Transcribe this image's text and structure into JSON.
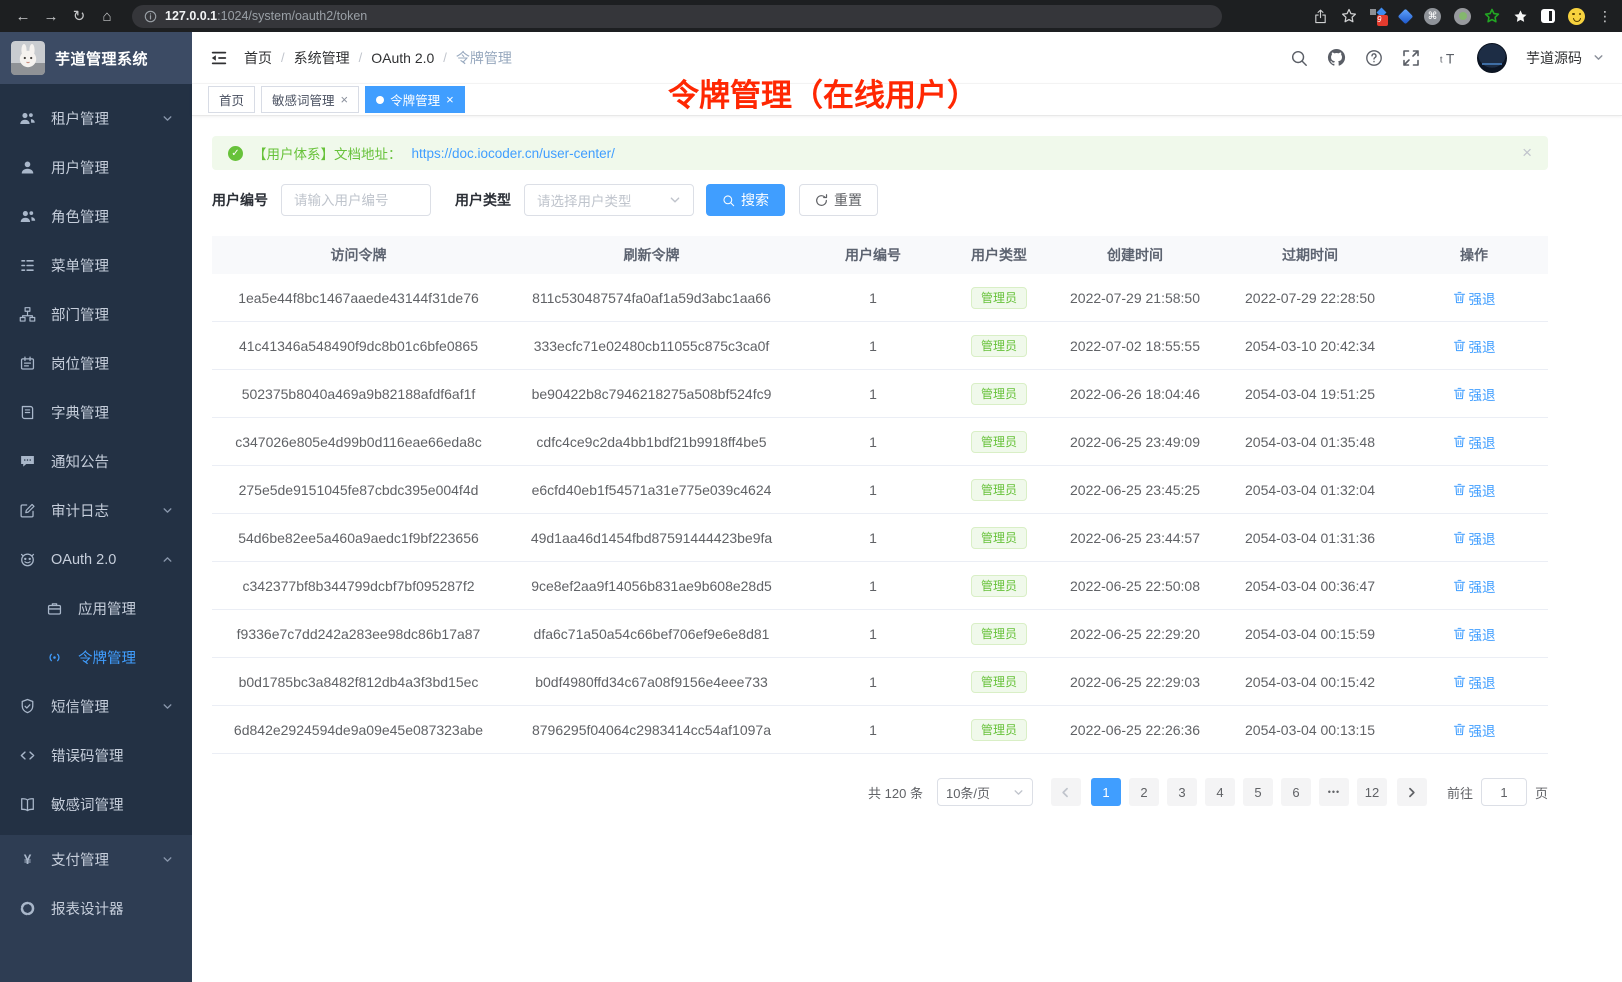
{
  "browser": {
    "url_host": "127.0.0.1",
    "url_path": ":1024/system/oauth2/token",
    "extension_badge": "9",
    "nav_icons": [
      "back-icon",
      "forward-icon",
      "reload-icon",
      "home-icon",
      "share-icon",
      "bookmark-star-icon",
      "extensions",
      "overflow-menu-icon"
    ]
  },
  "sidebar": {
    "app_title": "芋道管理系统",
    "items": [
      {
        "key": "tenant",
        "label": "租户管理",
        "icon": "tenant-icon",
        "chevron": "down"
      },
      {
        "key": "user",
        "label": "用户管理",
        "icon": "user-icon"
      },
      {
        "key": "role",
        "label": "角色管理",
        "icon": "role-icon"
      },
      {
        "key": "menu",
        "label": "菜单管理",
        "icon": "menu-icon"
      },
      {
        "key": "dept",
        "label": "部门管理",
        "icon": "dept-icon"
      },
      {
        "key": "post",
        "label": "岗位管理",
        "icon": "post-icon"
      },
      {
        "key": "dict",
        "label": "字典管理",
        "icon": "dict-icon"
      },
      {
        "key": "notice",
        "label": "通知公告",
        "icon": "notice-icon"
      },
      {
        "key": "audit-log",
        "label": "审计日志",
        "icon": "audit-icon",
        "chevron": "down"
      },
      {
        "key": "oauth2",
        "label": "OAuth 2.0",
        "icon": "oauth-icon",
        "chevron": "up"
      },
      {
        "key": "oauth2-app",
        "label": "应用管理",
        "icon": "app-icon",
        "sub": true
      },
      {
        "key": "oauth2-token",
        "label": "令牌管理",
        "icon": "token-icon",
        "sub": true,
        "active": true
      },
      {
        "key": "sms",
        "label": "短信管理",
        "icon": "sms-icon",
        "chevron": "down"
      },
      {
        "key": "error-code",
        "label": "错误码管理",
        "icon": "errcode-icon"
      },
      {
        "key": "sensitive-word",
        "label": "敏感词管理",
        "icon": "sensitive-icon"
      },
      {
        "key": "pay",
        "label": "支付管理",
        "icon": "pay-icon",
        "chevron": "down",
        "group": "light"
      },
      {
        "key": "report-designer",
        "label": "报表设计器",
        "icon": "report-icon",
        "group": "light"
      }
    ]
  },
  "header": {
    "breadcrumb": [
      "首页",
      "系统管理",
      "OAuth 2.0",
      "令牌管理"
    ],
    "tools": [
      "search-icon",
      "github-icon",
      "help-icon",
      "fullscreen-icon",
      "font-size-icon"
    ],
    "username": "芋道源码",
    "annotation": "令牌管理（在线用户）"
  },
  "tabs": [
    {
      "key": "home",
      "label": "首页",
      "closable": false,
      "active": false
    },
    {
      "key": "sensitive-word",
      "label": "敏感词管理",
      "closable": true,
      "active": false
    },
    {
      "key": "oauth2-token",
      "label": "令牌管理",
      "closable": true,
      "active": true
    }
  ],
  "alert": {
    "text": "【用户体系】文档地址：",
    "link": "https://doc.iocoder.cn/user-center/"
  },
  "filters": {
    "user_id_label": "用户编号",
    "user_id_placeholder": "请输入用户编号",
    "user_type_label": "用户类型",
    "user_type_placeholder": "请选择用户类型",
    "search_label": "搜索",
    "reset_label": "重置"
  },
  "table": {
    "columns": [
      "访问令牌",
      "刷新令牌",
      "用户编号",
      "用户类型",
      "创建时间",
      "过期时间",
      "操作"
    ],
    "rows": [
      {
        "access_token": "1ea5e44f8bc1467aaede43144f31de76",
        "refresh_token": "811c530487574fa0af1a59d3abc1aa66",
        "user_id": "1",
        "user_type": "管理员",
        "created_time": "2022-07-29 21:58:50",
        "expire_time": "2022-07-29 22:28:50",
        "action": "强退"
      },
      {
        "access_token": "41c41346a548490f9dc8b01c6bfe0865",
        "refresh_token": "333ecfc71e02480cb11055c875c3ca0f",
        "user_id": "1",
        "user_type": "管理员",
        "created_time": "2022-07-02 18:55:55",
        "expire_time": "2054-03-10 20:42:34",
        "action": "强退"
      },
      {
        "access_token": "502375b8040a469a9b82188afdf6af1f",
        "refresh_token": "be90422b8c7946218275a508bf524fc9",
        "user_id": "1",
        "user_type": "管理员",
        "created_time": "2022-06-26 18:04:46",
        "expire_time": "2054-03-04 19:51:25",
        "action": "强退"
      },
      {
        "access_token": "c347026e805e4d99b0d116eae66eda8c",
        "refresh_token": "cdfc4ce9c2da4bb1bdf21b9918ff4be5",
        "user_id": "1",
        "user_type": "管理员",
        "created_time": "2022-06-25 23:49:09",
        "expire_time": "2054-03-04 01:35:48",
        "action": "强退"
      },
      {
        "access_token": "275e5de9151045fe87cbdc395e004f4d",
        "refresh_token": "e6cfd40eb1f54571a31e775e039c4624",
        "user_id": "1",
        "user_type": "管理员",
        "created_time": "2022-06-25 23:45:25",
        "expire_time": "2054-03-04 01:32:04",
        "action": "强退"
      },
      {
        "access_token": "54d6be82ee5a460a9aedc1f9bf223656",
        "refresh_token": "49d1aa46d1454fbd87591444423be9fa",
        "user_id": "1",
        "user_type": "管理员",
        "created_time": "2022-06-25 23:44:57",
        "expire_time": "2054-03-04 01:31:36",
        "action": "强退"
      },
      {
        "access_token": "c342377bf8b344799dcbf7bf095287f2",
        "refresh_token": "9ce8ef2aa9f14056b831ae9b608e28d5",
        "user_id": "1",
        "user_type": "管理员",
        "created_time": "2022-06-25 22:50:08",
        "expire_time": "2054-03-04 00:36:47",
        "action": "强退"
      },
      {
        "access_token": "f9336e7c7dd242a283ee98dc86b17a87",
        "refresh_token": "dfa6c71a50a54c66bef706ef9e6e8d81",
        "user_id": "1",
        "user_type": "管理员",
        "created_time": "2022-06-25 22:29:20",
        "expire_time": "2054-03-04 00:15:59",
        "action": "强退"
      },
      {
        "access_token": "b0d1785bc3a8482f812db4a3f3bd15ec",
        "refresh_token": "b0df4980ffd34c67a08f9156e4eee733",
        "user_id": "1",
        "user_type": "管理员",
        "created_time": "2022-06-25 22:29:03",
        "expire_time": "2054-03-04 00:15:42",
        "action": "强退"
      },
      {
        "access_token": "6d842e2924594de9a09e45e087323abe",
        "refresh_token": "8796295f04064c2983414cc54af1097a",
        "user_id": "1",
        "user_type": "管理员",
        "created_time": "2022-06-25 22:26:36",
        "expire_time": "2054-03-04 00:13:15",
        "action": "强退"
      }
    ]
  },
  "pagination": {
    "total": "共 120 条",
    "page_size": "10条/页",
    "pages": [
      "1",
      "2",
      "3",
      "4",
      "5",
      "6",
      "...",
      "12"
    ],
    "active_page": "1",
    "goto_label": "前往",
    "goto_value": "1",
    "unit_label": "页"
  },
  "colors": {
    "accent": "#409eff",
    "success": "#67c23a",
    "annotation_red": "#ff2702",
    "sidebar_bg": "#233144"
  }
}
